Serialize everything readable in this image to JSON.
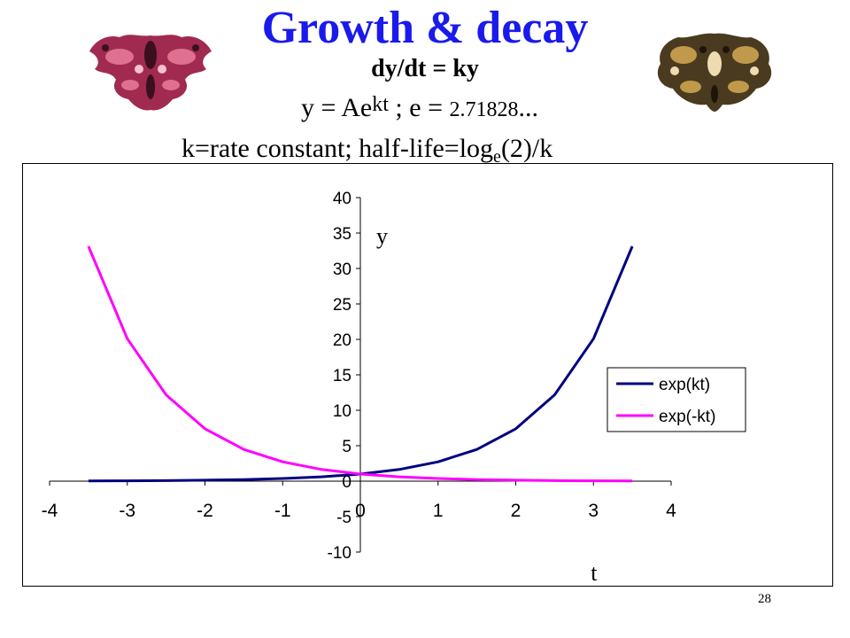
{
  "slide": {
    "title": "Growth & decay",
    "eq1": "dy/dt = ky",
    "eq2_prefix": "y = Ae",
    "eq2_sup": "kt",
    "eq2_mid": " ;  e = ",
    "eq2_num": "2.71828",
    "eq2_suffix": "...",
    "eq3_prefix": "k=rate constant; half-life=log",
    "eq3_sub": "e",
    "eq3_suffix": "(2)/k",
    "page_number": "28"
  },
  "colors": {
    "title": "#1a1aec",
    "growth": "#000080",
    "decay": "#ff00ff"
  },
  "chart_data": {
    "type": "line",
    "xlim": [
      -4,
      4
    ],
    "ylim": [
      -10,
      40
    ],
    "x_ticks": [
      "-4",
      "-3",
      "-2",
      "-1",
      "0",
      "1",
      "2",
      "3",
      "4"
    ],
    "y_ticks": [
      "40",
      "35",
      "30",
      "25",
      "20",
      "15",
      "10",
      "5",
      "0",
      "-5",
      "-10"
    ],
    "xlabel": "t",
    "ylabel": "y",
    "grid": false,
    "legend_position": "right",
    "x": [
      -3.5,
      -3.0,
      -2.5,
      -2.0,
      -1.5,
      -1.0,
      -0.5,
      0.0,
      0.5,
      1.0,
      1.5,
      2.0,
      2.5,
      3.0,
      3.5
    ],
    "series": [
      {
        "name": "exp(kt)",
        "values": [
          0.03,
          0.05,
          0.08,
          0.14,
          0.22,
          0.37,
          0.61,
          1.0,
          1.65,
          2.72,
          4.48,
          7.39,
          12.18,
          20.09,
          33.12
        ]
      },
      {
        "name": "exp(-kt)",
        "values": [
          33.12,
          20.09,
          12.18,
          7.39,
          4.48,
          2.72,
          1.65,
          1.0,
          0.61,
          0.37,
          0.22,
          0.14,
          0.08,
          0.05,
          0.03
        ]
      }
    ]
  }
}
